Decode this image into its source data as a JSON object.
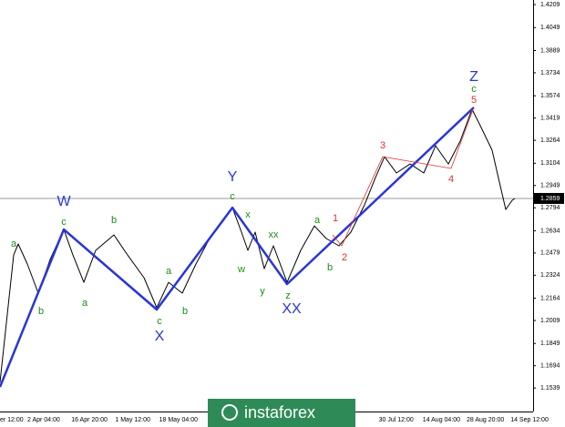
{
  "chart_data": {
    "type": "line",
    "xlim": [
      0,
      117
    ],
    "ylim": [
      1.1375,
      1.4241
    ],
    "yticks": [
      1.4209,
      1.4049,
      1.3889,
      1.3734,
      1.3574,
      1.3419,
      1.3264,
      1.3104,
      1.2949,
      1.2794,
      1.2634,
      1.2479,
      1.2324,
      1.2164,
      1.2009,
      1.1849,
      1.1694,
      1.1539
    ],
    "categories": [
      "er 12:00",
      "2 Apr 04:00",
      "16 Apr 20:00",
      "1 May 12:00",
      "18 May 04:00",
      null,
      null,
      null,
      null,
      "30 Jul 12:00",
      "14 Aug 04:00",
      "28 Aug 20:00",
      "14 Sep 12:00"
    ],
    "current_price": 1.2859,
    "series": [
      {
        "color": "#000000",
        "x": [
          0,
          3,
          4,
          6,
          8.4,
          11,
          14,
          16,
          18.4,
          21,
          25,
          28,
          31.6,
          34.4,
          37,
          40,
          43,
          46,
          51,
          53,
          54.4,
          56,
          58,
          60,
          63,
          66,
          69,
          71.6,
          74.4,
          77,
          80,
          82.4,
          84.4,
          87,
          90,
          93,
          95.6,
          98.4,
          101,
          103.6,
          105.6,
          108,
          109.6,
          111,
          112.4,
          113
        ],
        "values": [
          1.1578,
          1.2465,
          1.2542,
          1.2402,
          1.2199,
          1.2434,
          1.2643,
          1.2465,
          1.2275,
          1.2497,
          1.2605,
          1.2465,
          1.2307,
          1.2098,
          1.2275,
          1.2199,
          1.2402,
          1.258,
          1.2795,
          1.2624,
          1.2497,
          1.2624,
          1.237,
          1.2529,
          1.2275,
          1.2497,
          1.2668,
          1.258,
          1.2529,
          1.2624,
          1.2814,
          1.3004,
          1.315,
          1.3036,
          1.3099,
          1.3036,
          1.3226,
          1.3099,
          1.3258,
          1.348,
          1.3353,
          1.3195,
          1.2973,
          1.2782,
          1.2846,
          1.2859
        ]
      },
      {
        "color": "#2a35d6",
        "x": [
          0,
          14,
          34.4,
          51,
          63,
          104
        ],
        "values": [
          1.1546,
          1.2643,
          1.2085,
          1.2795,
          1.2263,
          1.3493
        ]
      },
      {
        "color": "#e03030",
        "x": [
          73,
          75,
          84,
          99,
          104
        ],
        "values": [
          1.2605,
          1.2529,
          1.315,
          1.3068,
          1.3493
        ]
      }
    ],
    "annotations": [
      {
        "text": "W",
        "color": "#2a35d6"
      },
      {
        "text": "X",
        "color": "#2a35d6"
      },
      {
        "text": "Y",
        "color": "#2a35d6"
      },
      {
        "text": "XX",
        "color": "#2a35d6"
      },
      {
        "text": "Z",
        "color": "#2a35d6"
      },
      {
        "text": "a",
        "color": "#1e8a1e"
      },
      {
        "text": "b",
        "color": "#1e8a1e"
      },
      {
        "text": "c",
        "color": "#1e8a1e"
      },
      {
        "text": "a",
        "color": "#1e8a1e"
      },
      {
        "text": "b",
        "color": "#1e8a1e"
      },
      {
        "text": "c",
        "color": "#1e8a1e"
      },
      {
        "text": "a",
        "color": "#1e8a1e"
      },
      {
        "text": "b",
        "color": "#1e8a1e"
      },
      {
        "text": "c",
        "color": "#1e8a1e"
      },
      {
        "text": "x",
        "color": "#1e8a1e"
      },
      {
        "text": "w",
        "color": "#1e8a1e"
      },
      {
        "text": "xx",
        "color": "#1e8a1e"
      },
      {
        "text": "y",
        "color": "#1e8a1e"
      },
      {
        "text": "z",
        "color": "#1e8a1e"
      },
      {
        "text": "a",
        "color": "#1e8a1e"
      },
      {
        "text": "b",
        "color": "#1e8a1e"
      },
      {
        "text": "c",
        "color": "#1e8a1e"
      },
      {
        "text": "1",
        "color": "#e03030"
      },
      {
        "text": "2",
        "color": "#e03030"
      },
      {
        "text": "3",
        "color": "#e03030"
      },
      {
        "text": "4",
        "color": "#e03030"
      },
      {
        "text": "5",
        "color": "#e03030"
      }
    ],
    "watermark": "instaforex"
  }
}
